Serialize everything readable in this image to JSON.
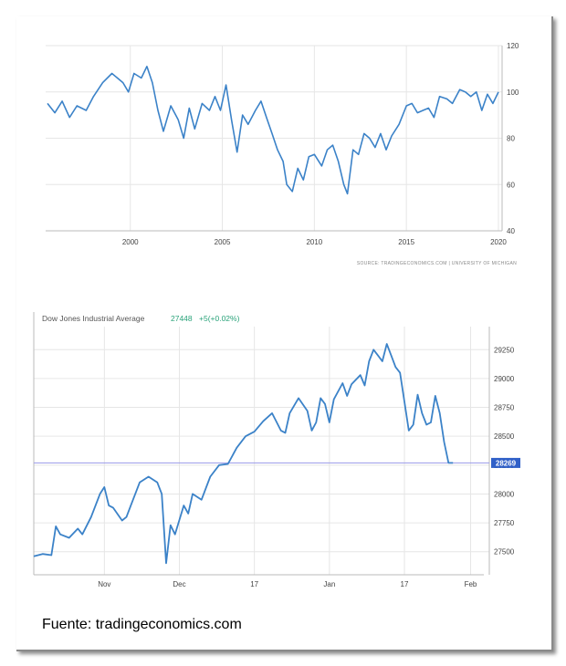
{
  "caption": "Fuente: tradingeconomics.com",
  "colors": {
    "line": "#3b82c8",
    "grid": "#e6e6e6",
    "axis": "#bbbbbb",
    "ref_line": "#9a9ae8",
    "badge": "#3060c8",
    "change": "#2aa37a"
  },
  "chart_data": [
    {
      "type": "line",
      "title": "",
      "source": "SOURCE: TRADINGECONOMICS.COM  |  UNIVERSITY OF MICHIGAN",
      "xlim": [
        1995.4,
        2020.2
      ],
      "ylim": [
        40,
        120
      ],
      "xticks": [
        2000,
        2005,
        2010,
        2015,
        2020
      ],
      "yticks": [
        40,
        60,
        80,
        100,
        120
      ],
      "grid": true,
      "series": [
        {
          "points": [
            [
              1995.5,
              95
            ],
            [
              1995.9,
              91
            ],
            [
              1996.3,
              96
            ],
            [
              1996.7,
              89
            ],
            [
              1997.1,
              94
            ],
            [
              1997.6,
              92
            ],
            [
              1998.0,
              98
            ],
            [
              1998.5,
              104
            ],
            [
              1999.0,
              108
            ],
            [
              1999.3,
              106
            ],
            [
              1999.6,
              104
            ],
            [
              1999.9,
              100
            ],
            [
              2000.2,
              108
            ],
            [
              2000.6,
              106
            ],
            [
              2000.9,
              111
            ],
            [
              2001.2,
              104
            ],
            [
              2001.5,
              92
            ],
            [
              2001.8,
              83
            ],
            [
              2002.2,
              94
            ],
            [
              2002.6,
              88
            ],
            [
              2002.9,
              80
            ],
            [
              2003.2,
              93
            ],
            [
              2003.5,
              84
            ],
            [
              2003.9,
              95
            ],
            [
              2004.3,
              92
            ],
            [
              2004.6,
              98
            ],
            [
              2004.9,
              92
            ],
            [
              2005.2,
              103
            ],
            [
              2005.5,
              88
            ],
            [
              2005.8,
              74
            ],
            [
              2006.1,
              90
            ],
            [
              2006.4,
              86
            ],
            [
              2006.8,
              92
            ],
            [
              2007.1,
              96
            ],
            [
              2007.4,
              89
            ],
            [
              2007.7,
              82
            ],
            [
              2008.0,
              75
            ],
            [
              2008.3,
              70
            ],
            [
              2008.5,
              60
            ],
            [
              2008.8,
              57
            ],
            [
              2009.1,
              67
            ],
            [
              2009.4,
              62
            ],
            [
              2009.7,
              72
            ],
            [
              2010.0,
              73
            ],
            [
              2010.4,
              68
            ],
            [
              2010.7,
              75
            ],
            [
              2011.0,
              77
            ],
            [
              2011.3,
              70
            ],
            [
              2011.6,
              60
            ],
            [
              2011.8,
              56
            ],
            [
              2012.1,
              75
            ],
            [
              2012.4,
              73
            ],
            [
              2012.7,
              82
            ],
            [
              2013.0,
              80
            ],
            [
              2013.3,
              76
            ],
            [
              2013.6,
              82
            ],
            [
              2013.9,
              75
            ],
            [
              2014.2,
              81
            ],
            [
              2014.6,
              86
            ],
            [
              2015.0,
              94
            ],
            [
              2015.3,
              95
            ],
            [
              2015.6,
              91
            ],
            [
              2015.9,
              92
            ],
            [
              2016.2,
              93
            ],
            [
              2016.5,
              89
            ],
            [
              2016.8,
              98
            ],
            [
              2017.2,
              97
            ],
            [
              2017.5,
              95
            ],
            [
              2017.9,
              101
            ],
            [
              2018.2,
              100
            ],
            [
              2018.5,
              98
            ],
            [
              2018.8,
              100
            ],
            [
              2019.1,
              92
            ],
            [
              2019.4,
              99
            ],
            [
              2019.7,
              95
            ],
            [
              2020.0,
              100
            ]
          ]
        }
      ]
    },
    {
      "type": "line",
      "title": "Dow Jones Industrial Average",
      "last_value": "27448",
      "change": "+5(+0.02%)",
      "current_label": "28269",
      "current_value": 28269,
      "xlim": [
        0,
        102
      ],
      "ylim": [
        27300,
        29450
      ],
      "xticks": [
        {
          "label": "Nov",
          "x": 16
        },
        {
          "label": "Dec",
          "x": 33
        },
        {
          "label": "17",
          "x": 50
        },
        {
          "label": "Jan",
          "x": 67
        },
        {
          "label": "17",
          "x": 84
        },
        {
          "label": "Feb",
          "x": 99
        }
      ],
      "yticks": [
        27500,
        27750,
        28000,
        28250,
        28500,
        28750,
        29000,
        29250
      ],
      "grid": true,
      "series": [
        {
          "points": [
            [
              0,
              27460
            ],
            [
              2,
              27480
            ],
            [
              4,
              27470
            ],
            [
              5,
              27720
            ],
            [
              6,
              27650
            ],
            [
              8,
              27620
            ],
            [
              10,
              27700
            ],
            [
              11,
              27650
            ],
            [
              13,
              27800
            ],
            [
              15,
              28000
            ],
            [
              16,
              28060
            ],
            [
              17,
              27900
            ],
            [
              18,
              27880
            ],
            [
              20,
              27770
            ],
            [
              21,
              27800
            ],
            [
              22,
              27900
            ],
            [
              24,
              28100
            ],
            [
              26,
              28150
            ],
            [
              28,
              28100
            ],
            [
              29,
              28000
            ],
            [
              30,
              27400
            ],
            [
              31,
              27730
            ],
            [
              32,
              27650
            ],
            [
              34,
              27900
            ],
            [
              35,
              27830
            ],
            [
              36,
              28000
            ],
            [
              38,
              27950
            ],
            [
              40,
              28150
            ],
            [
              42,
              28250
            ],
            [
              44,
              28260
            ],
            [
              46,
              28400
            ],
            [
              48,
              28500
            ],
            [
              50,
              28540
            ],
            [
              52,
              28630
            ],
            [
              54,
              28700
            ],
            [
              56,
              28550
            ],
            [
              57,
              28530
            ],
            [
              58,
              28700
            ],
            [
              60,
              28830
            ],
            [
              62,
              28720
            ],
            [
              63,
              28550
            ],
            [
              64,
              28620
            ],
            [
              65,
              28830
            ],
            [
              66,
              28780
            ],
            [
              67,
              28620
            ],
            [
              68,
              28820
            ],
            [
              70,
              28960
            ],
            [
              71,
              28850
            ],
            [
              72,
              28950
            ],
            [
              74,
              29030
            ],
            [
              75,
              28940
            ],
            [
              76,
              29150
            ],
            [
              77,
              29250
            ],
            [
              78,
              29200
            ],
            [
              79,
              29150
            ],
            [
              80,
              29300
            ],
            [
              81,
              29200
            ],
            [
              82,
              29100
            ],
            [
              83,
              29050
            ],
            [
              84,
              28800
            ],
            [
              85,
              28550
            ],
            [
              86,
              28600
            ],
            [
              87,
              28860
            ],
            [
              88,
              28700
            ],
            [
              89,
              28600
            ],
            [
              90,
              28620
            ],
            [
              91,
              28850
            ],
            [
              92,
              28700
            ],
            [
              93,
              28450
            ],
            [
              94,
              28270
            ],
            [
              95,
              28269
            ]
          ]
        }
      ]
    }
  ]
}
